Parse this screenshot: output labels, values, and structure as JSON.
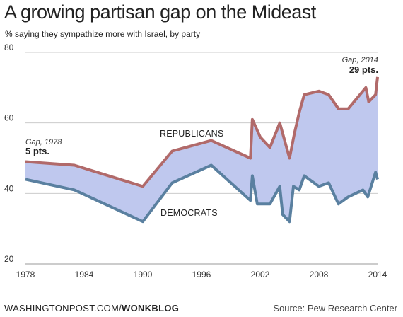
{
  "title": "A growing partisan gap on the Mideast",
  "subtitle": "% saying they sympathize more with Israel, by party",
  "footer": {
    "brand": "WASHINGTONPOST.COM/",
    "brand_bold": "WONKBLOG",
    "source": "Source: Pew Research Center"
  },
  "colors": {
    "republicans": "#b16a6a",
    "democrats": "#5a80a0",
    "gap_fill": "#bfc8ee",
    "grid": "#cccccc"
  },
  "chart_data": {
    "type": "line",
    "title": "A growing partisan gap on the Mideast",
    "xlim": [
      1978,
      2014
    ],
    "ylim": [
      20,
      80
    ],
    "x_ticks": [
      "1978",
      "1984",
      "1990",
      "1996",
      "2002",
      "2008",
      "2014"
    ],
    "y_ticks": [
      "20",
      "40",
      "60",
      "80"
    ],
    "grid": "horizontal",
    "fill_between": true,
    "series": [
      {
        "name": "REPUBLICANS",
        "x": [
          1978,
          1983,
          1990,
          1993,
          1997,
          2001,
          2001.2,
          2002,
          2003,
          2004,
          2005,
          2005.5,
          2006,
          2006.5,
          2008,
          2009,
          2010,
          2011,
          2012.8,
          2013.1,
          2013.8,
          2014
        ],
        "values": [
          49,
          48,
          42,
          52,
          55,
          50,
          61,
          56,
          53,
          60,
          50,
          57,
          63,
          68,
          69,
          68,
          64,
          64,
          70,
          66,
          68,
          73
        ]
      },
      {
        "name": "DEMOCRATS",
        "x": [
          1978,
          1983,
          1990,
          1993,
          1997,
          2001,
          2001.2,
          2001.7,
          2003,
          2004,
          2004.3,
          2005,
          2005.4,
          2006,
          2006.5,
          2008,
          2009,
          2010,
          2011,
          2012.5,
          2013,
          2013.8,
          2014
        ],
        "values": [
          44,
          41,
          32,
          43,
          48,
          38,
          45,
          37,
          37,
          42,
          34,
          32,
          42,
          41,
          45,
          42,
          43,
          37,
          39,
          41,
          39,
          46,
          44
        ]
      }
    ],
    "annotations": [
      {
        "label": "Gap, 1978",
        "value": "5 pts."
      },
      {
        "label": "Gap, 2014",
        "value": "29 pts."
      }
    ]
  }
}
